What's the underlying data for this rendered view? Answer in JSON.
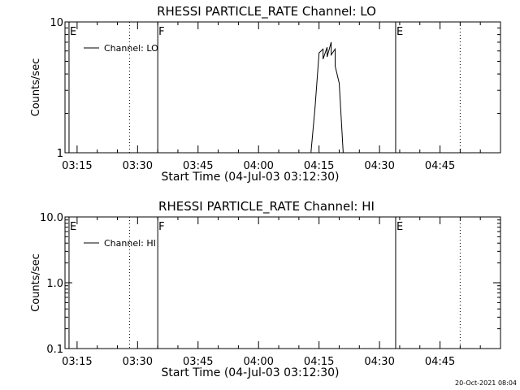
{
  "timestamp": "20-Oct-2021 08:04",
  "chart_data": [
    {
      "type": "line",
      "title": "RHESSI PARTICLE_RATE Channel: LO",
      "xlabel": "Start Time (04-Jul-03 03:12:30)",
      "ylabel": "Counts/sec",
      "yscale": "log",
      "ylim": [
        1,
        10
      ],
      "y_ticks": [
        {
          "value": 1,
          "label": "1"
        },
        {
          "value": 10,
          "label": "10"
        }
      ],
      "xlim": [
        "03:12",
        "05:00"
      ],
      "x_ticks": [
        "03:15",
        "03:30",
        "03:45",
        "04:00",
        "04:15",
        "04:30",
        "04:45"
      ],
      "legend": {
        "label": "Channel: LO",
        "placement": "top-left"
      },
      "markers": [
        {
          "time": "03:13",
          "label": "E",
          "style": "solid"
        },
        {
          "time": "03:28",
          "label": "",
          "style": "dotted"
        },
        {
          "time": "03:35",
          "label": "F",
          "style": "solid"
        },
        {
          "time": "04:34",
          "label": "E",
          "style": "solid"
        },
        {
          "time": "04:50",
          "label": "",
          "style": "dotted"
        }
      ],
      "series": [
        {
          "name": "Channel: LO",
          "x": [
            "04:13",
            "04:14",
            "04:15",
            "04:16",
            "04:16",
            "04:17",
            "04:17",
            "04:18",
            "04:18",
            "04:19",
            "04:19",
            "04:20",
            "04:21"
          ],
          "y": [
            1.0,
            2.2,
            5.8,
            6.2,
            5.2,
            6.4,
            5.4,
            7.0,
            5.6,
            6.2,
            4.6,
            3.4,
            1.0
          ]
        }
      ]
    },
    {
      "type": "line",
      "title": "RHESSI PARTICLE_RATE Channel: HI",
      "xlabel": "Start Time (04-Jul-03 03:12:30)",
      "ylabel": "Counts/sec",
      "yscale": "log",
      "ylim": [
        0.1,
        10
      ],
      "y_ticks": [
        {
          "value": 0.1,
          "label": "0.1"
        },
        {
          "value": 1,
          "label": "1.0"
        },
        {
          "value": 10,
          "label": "10.0"
        }
      ],
      "xlim": [
        "03:12",
        "05:00"
      ],
      "x_ticks": [
        "03:15",
        "03:30",
        "03:45",
        "04:00",
        "04:15",
        "04:30",
        "04:45"
      ],
      "legend": {
        "label": "Channel: HI",
        "placement": "top-left"
      },
      "markers": [
        {
          "time": "03:13",
          "label": "E",
          "style": "solid"
        },
        {
          "time": "03:28",
          "label": "",
          "style": "dotted"
        },
        {
          "time": "03:35",
          "label": "F",
          "style": "solid"
        },
        {
          "time": "04:34",
          "label": "E",
          "style": "solid"
        },
        {
          "time": "04:50",
          "label": "",
          "style": "dotted"
        }
      ],
      "series": []
    }
  ]
}
